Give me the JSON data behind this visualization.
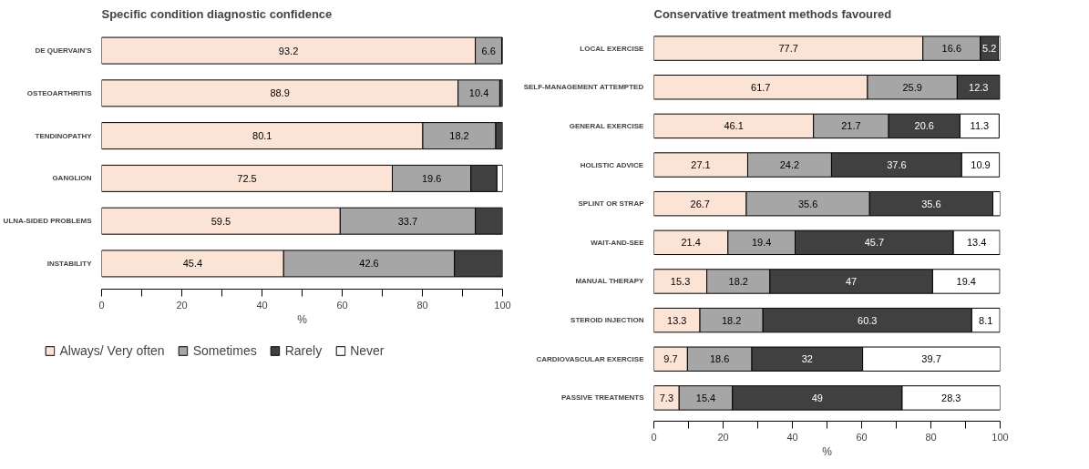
{
  "chart_data": [
    {
      "type": "bar",
      "orientation": "horizontal",
      "stacked": true,
      "title": "Specific condition diagnostic confidence",
      "xlabel": "%",
      "categories": [
        "DE QUERVAIN'S",
        "OSTEOARTHRITIS",
        "TENDINOPATHY",
        "GANGLION",
        "ULNA-SIDED PROBLEMS",
        "INSTABILITY"
      ],
      "series": [
        {
          "name": "Always/ Very often",
          "color": "#fbe3d6",
          "values": [
            93.2,
            88.9,
            80.1,
            72.5,
            59.5,
            45.4
          ],
          "value_labels": [
            "93.2",
            "88.9",
            "80.1",
            "72.5",
            "59.5",
            "45.4"
          ]
        },
        {
          "name": "Sometimes",
          "color": "#a6a6a6",
          "values": [
            6.6,
            10.4,
            18.2,
            19.6,
            33.7,
            42.6
          ],
          "value_labels": [
            "6.6",
            "10.4",
            "18.2",
            "19.6",
            "33.7",
            "42.6"
          ]
        },
        {
          "name": "Rarely",
          "color": "#404040",
          "values": [
            0.2,
            0.7,
            1.7,
            6.5,
            6.8,
            12.0
          ],
          "value_labels": [
            null,
            null,
            null,
            null,
            null,
            null
          ]
        },
        {
          "name": "Never",
          "color": "#ffffff",
          "values": [
            null,
            null,
            null,
            1.4,
            null,
            null
          ],
          "value_labels": [
            null,
            null,
            null,
            null,
            null,
            null
          ]
        }
      ],
      "xlim": [
        0,
        100
      ],
      "xticks": [
        0,
        {
          "value": 10,
          "label": null
        },
        20,
        {
          "value": 30,
          "label": null
        },
        40,
        {
          "value": 50,
          "label": null
        },
        60,
        {
          "value": 70,
          "label": null
        },
        80,
        {
          "value": 90,
          "label": null
        },
        100
      ],
      "legend": "bottom",
      "grid": false
    },
    {
      "type": "bar",
      "orientation": "horizontal",
      "stacked": true,
      "title": "Conservative treatment methods favoured",
      "xlabel": "%",
      "categories": [
        "LOCAL EXERCISE",
        "SELF-MANAGEMENT ATTEMPTED",
        "GENERAL EXERCISE",
        "HOLISTIC ADVICE",
        "SPLINT OR STRAP",
        "WAIT-AND-SEE",
        "MANUAL THERAPY",
        "STEROID INJECTION",
        "CARDIOVASCULAR EXERCISE",
        "PASSIVE TREATMENTS"
      ],
      "series": [
        {
          "color": "#fbe3d6",
          "values": [
            77.7,
            61.7,
            46.1,
            27.1,
            26.7,
            21.4,
            15.3,
            13.3,
            9.7,
            7.3
          ],
          "value_labels": [
            "77.7",
            "61.7",
            "46.1",
            "27.1",
            "26.7",
            "21.4",
            "15.3",
            "13.3",
            "9.7",
            "7.3"
          ]
        },
        {
          "color": "#a6a6a6",
          "values": [
            16.6,
            25.9,
            21.7,
            24.2,
            35.6,
            19.4,
            18.2,
            18.2,
            18.6,
            15.4
          ],
          "value_labels": [
            "16.6",
            "25.9",
            "21.7",
            "24.2",
            "35.6",
            "19.4",
            "18.2",
            "18.2",
            "18.6",
            "15.4"
          ]
        },
        {
          "color": "#404040",
          "values": [
            5.2,
            12.3,
            20.6,
            37.6,
            35.6,
            45.7,
            47,
            60.3,
            32,
            49
          ],
          "value_labels": [
            "5.2",
            "12.3",
            "20.6",
            "37.6",
            "35.6",
            "45.7",
            "47",
            "60.3",
            "32",
            "49"
          ]
        },
        {
          "color": "#ffffff",
          "values": [
            0.5,
            null,
            11.3,
            10.9,
            2.1,
            13.4,
            19.4,
            8.1,
            39.7,
            28.3
          ],
          "value_labels": [
            null,
            null,
            "11.3",
            "10.9",
            null,
            "13.4",
            "19.4",
            "8.1",
            "39.7",
            "28.3"
          ]
        }
      ],
      "xlim": [
        0,
        100
      ],
      "xticks": [
        0,
        {
          "value": 10,
          "label": null
        },
        20,
        {
          "value": 30,
          "label": null
        },
        40,
        {
          "value": 50,
          "label": null
        },
        60,
        {
          "value": 70,
          "label": null
        },
        80,
        {
          "value": 90,
          "label": null
        },
        100
      ],
      "grid": false
    }
  ]
}
